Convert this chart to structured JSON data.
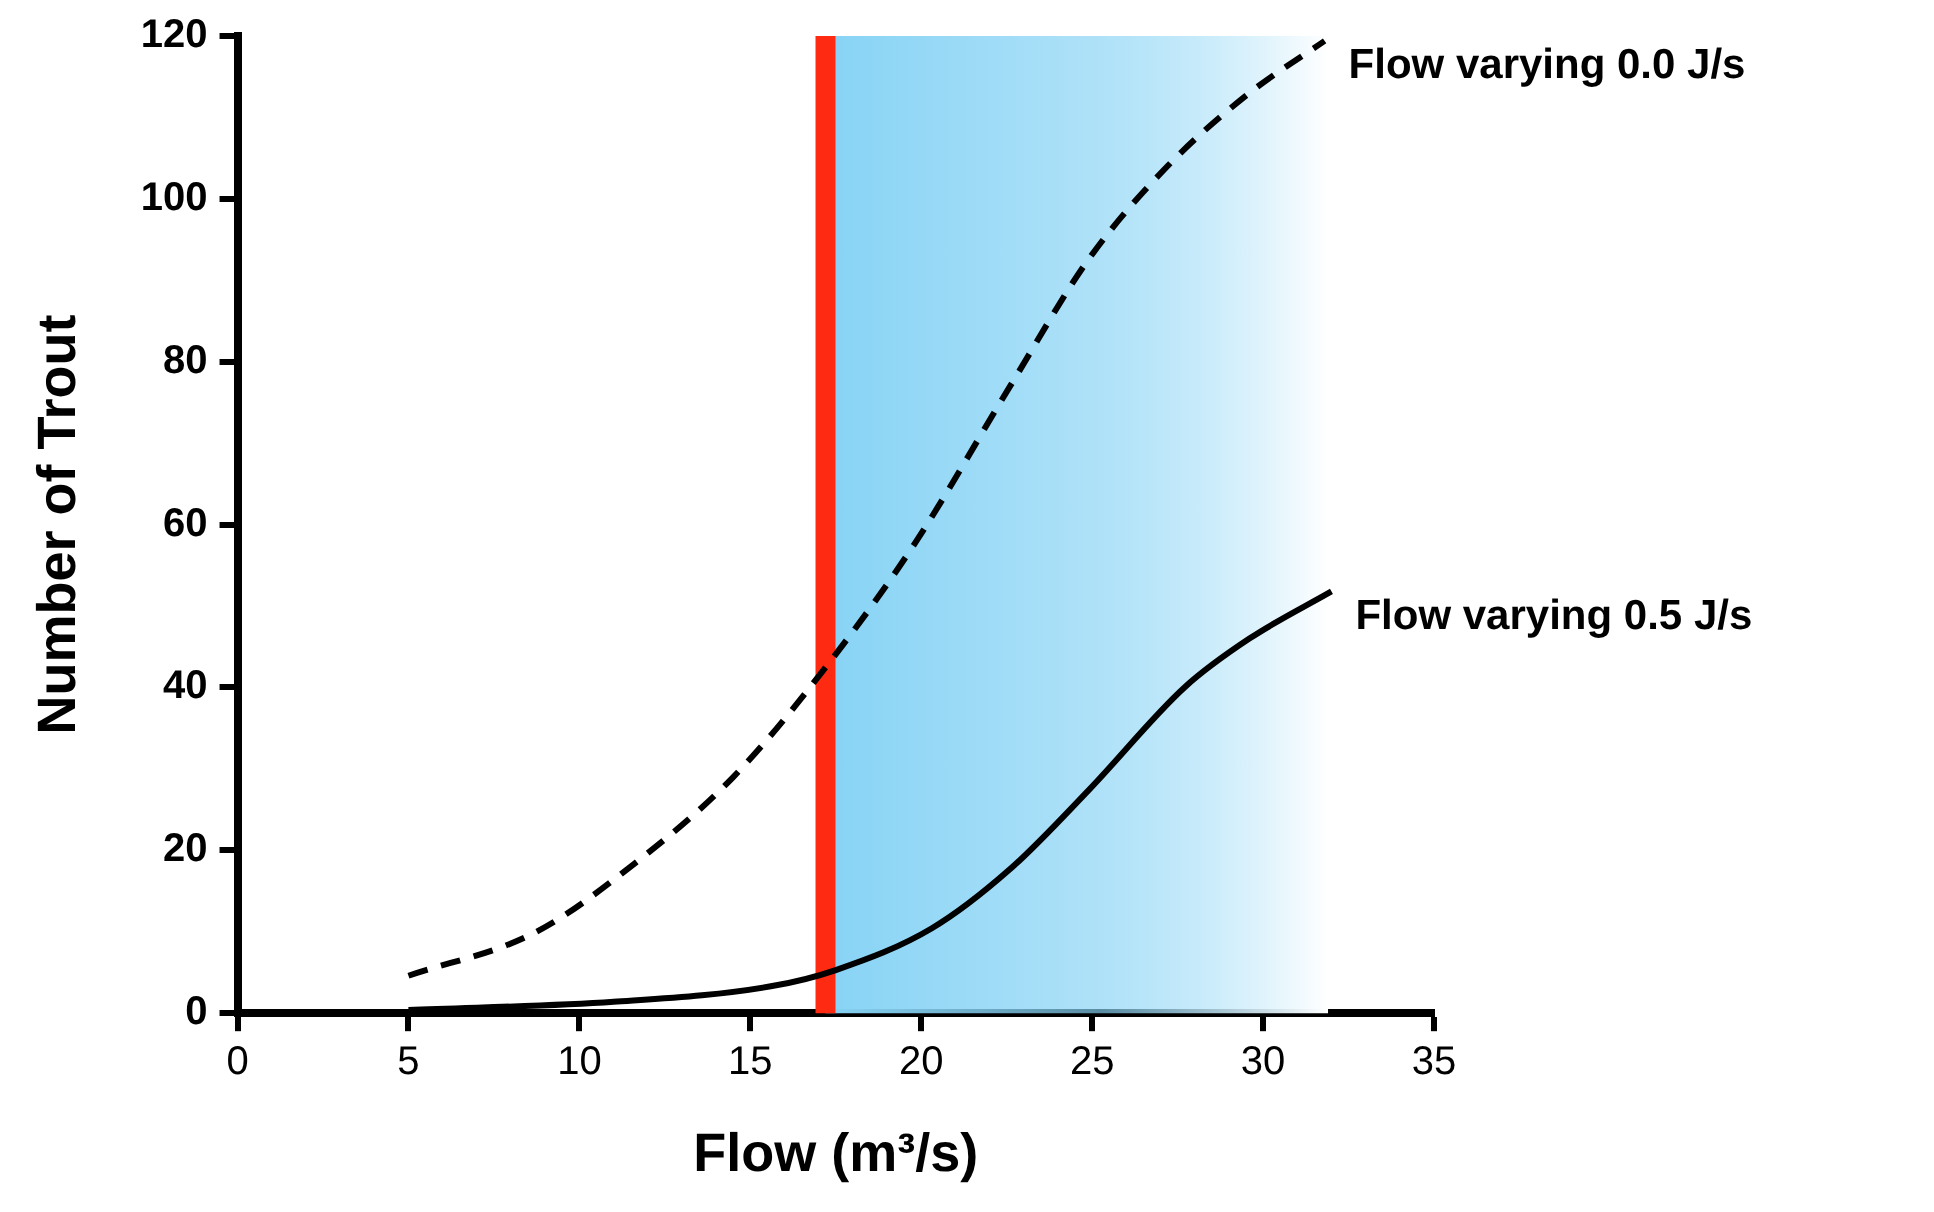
{
  "chart_data": {
    "type": "line",
    "xlabel": "Flow (m³/s)",
    "ylabel": "Number of Trout",
    "xlim": [
      0,
      35
    ],
    "xticks": [
      0,
      5,
      10,
      15,
      20,
      25,
      30,
      35
    ],
    "ylim": [
      0,
      120
    ],
    "yticks": [
      0,
      20,
      40,
      60,
      80,
      100,
      120
    ],
    "grid": false,
    "legend": false,
    "marker": "none",
    "series": [
      {
        "name": "Flow varying 0.0 J/s",
        "color": "#000000",
        "line_style": "dashed",
        "x": [
          5,
          8.7,
          11.5,
          14.5,
          17.3,
          19.8,
          22.6,
          24.9,
          27.2,
          29.6,
          31.8
        ],
        "values": [
          4.6,
          9.9,
          18,
          29,
          43,
          57.6,
          77,
          92.6,
          104,
          113,
          119.4
        ]
      },
      {
        "name": "Flow varying 0.5 J/s",
        "color": "#000000",
        "line_style": "solid",
        "x": [
          5,
          11,
          15.6,
          17.5,
          20.3,
          22.6,
          24.9,
          27.7,
          29.6,
          32
        ],
        "values": [
          0.4,
          1.4,
          3.3,
          5.3,
          10.4,
          17.7,
          27.4,
          40,
          46,
          51.8
        ]
      }
    ],
    "ref_lines": [
      {
        "axis": "x",
        "value": 17.2,
        "color": "#ff2a12"
      }
    ],
    "bands": [
      {
        "axis": "x",
        "from": 17.2,
        "to": 31.9,
        "color": "#87d3f5"
      }
    ]
  }
}
